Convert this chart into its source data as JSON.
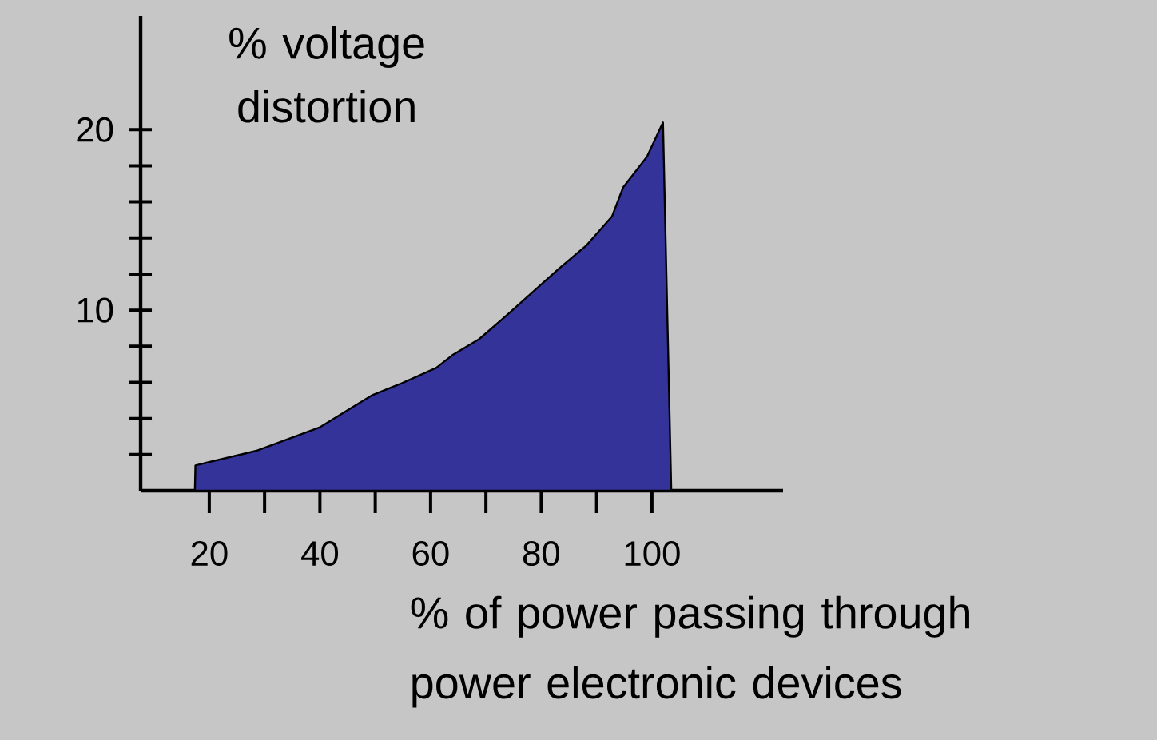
{
  "chart_data": {
    "type": "area",
    "ylabel": "% voltage distortion",
    "xlabel": "% of power passing through power electronic devices",
    "color": "#333399",
    "x": [
      17.4,
      17.5,
      28.4,
      39.9,
      49.5,
      54.4,
      61,
      63.9,
      68.8,
      73.7,
      83.2,
      88.2,
      92.8,
      94.8,
      99.1,
      102,
      103.5
    ],
    "values": [
      0,
      1.4,
      2.2,
      3.5,
      5.3,
      5.9,
      6.8,
      7.5,
      8.4,
      9.7,
      12.3,
      13.6,
      15.2,
      16.8,
      18.5,
      20.4,
      0
    ],
    "xlim": [
      7.6,
      123.7
    ],
    "ylim": [
      0,
      26.3
    ],
    "xticks": [
      20,
      {
        "value": 30,
        "label": null
      },
      40,
      {
        "value": 50,
        "label": null
      },
      60,
      {
        "value": 70,
        "label": null
      },
      80,
      {
        "value": 90,
        "label": null
      },
      100
    ],
    "yticks": [
      {
        "value": 2,
        "label": null
      },
      {
        "value": 4,
        "label": null
      },
      {
        "value": 6,
        "label": null
      },
      {
        "value": 8,
        "label": null
      },
      10,
      {
        "value": 12,
        "label": null
      },
      {
        "value": 14,
        "label": null
      },
      {
        "value": 16,
        "label": null
      },
      {
        "value": 18,
        "label": null
      },
      20
    ],
    "grid": false
  }
}
